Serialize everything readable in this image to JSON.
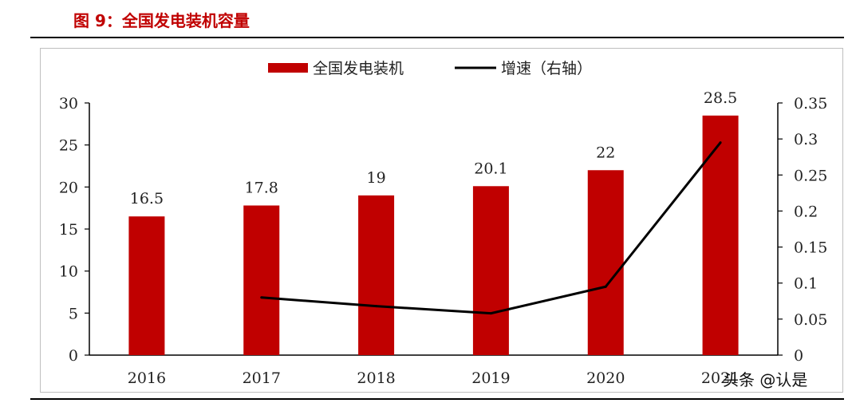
{
  "figure": {
    "title": "图 9：全国发电装机容量"
  },
  "watermark": "头条 @认是",
  "colors": {
    "bar": "#c00000",
    "line": "#000000",
    "title": "#c00000"
  },
  "chart_data": {
    "type": "bar",
    "categories": [
      "2016",
      "2017",
      "2018",
      "2019",
      "2020",
      "2021"
    ],
    "series": [
      {
        "name": "全国发电装机",
        "type": "bar",
        "axis": "left",
        "values": [
          16.5,
          17.8,
          19,
          20.1,
          22,
          28.5
        ],
        "data_labels": [
          "16.5",
          "17.8",
          "19",
          "20.1",
          "22",
          "28.5"
        ]
      },
      {
        "name": "增速（右轴）",
        "type": "line",
        "axis": "right",
        "values": [
          null,
          0.08,
          0.068,
          0.058,
          0.095,
          0.295
        ]
      }
    ],
    "y_left": {
      "range": [
        0,
        30
      ],
      "ticks": [
        "0",
        "5",
        "10",
        "15",
        "20",
        "25",
        "30"
      ]
    },
    "y_right": {
      "range": [
        0,
        0.35
      ],
      "ticks": [
        "0",
        "0.05",
        "0.1",
        "0.15",
        "0.2",
        "0.25",
        "0.3",
        "0.35"
      ]
    },
    "legend_position": "top-center",
    "grid": false
  }
}
